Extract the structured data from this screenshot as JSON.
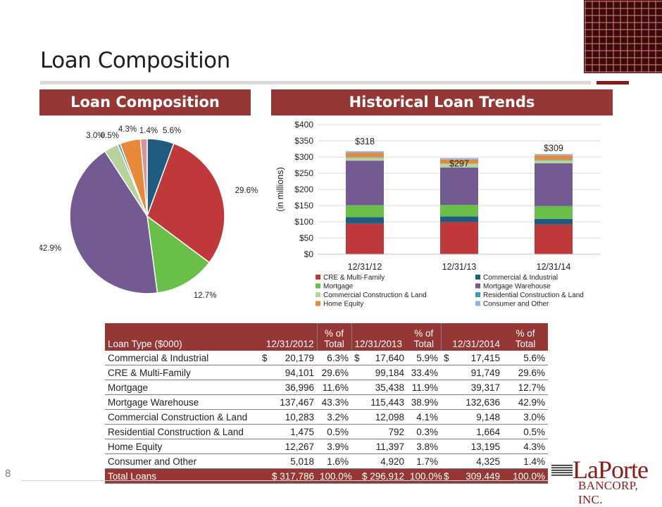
{
  "page": {
    "title": "Loan Composition",
    "page_number": "8"
  },
  "panels": {
    "left_title": "Loan Composition",
    "right_title": "Historical Loan Trends"
  },
  "logo": {
    "name": "LaPorte",
    "subtitle": "BANCORP, INC."
  },
  "colors": {
    "banner": "#953735",
    "commercial_industrial": "#1F5C7F",
    "cre_multi_family": "#C0393A",
    "mortgage": "#6ABF4B",
    "mortgage_warehouse": "#745A93",
    "commercial_construction_land": "#B7D39B",
    "residential_construction_land": "#3A9BB7",
    "home_equity": "#E8883A",
    "consumer_other": "#95B3D7",
    "consumer_other_pie": "#D99594"
  },
  "chart_data": [
    {
      "type": "pie",
      "title": "Loan Composition",
      "slices": [
        {
          "name": "Commercial & Industrial",
          "value": 5.6,
          "label": "5.6%"
        },
        {
          "name": "CRE & Multi-Family",
          "value": 29.6,
          "label": "29.6%"
        },
        {
          "name": "Mortgage",
          "value": 12.7,
          "label": "12.7%"
        },
        {
          "name": "Mortgage Warehouse",
          "value": 42.9,
          "label": "42.9%"
        },
        {
          "name": "Commercial Construction & Land",
          "value": 3.0,
          "label": "3.0%"
        },
        {
          "name": "Residential Construction & Land",
          "value": 0.5,
          "label": "0.5%"
        },
        {
          "name": "Home Equity",
          "value": 4.3,
          "label": "4.3%"
        },
        {
          "name": "Consumer and Other",
          "value": 1.4,
          "label": "1.4%"
        }
      ]
    },
    {
      "type": "bar",
      "stacked": true,
      "title": "Historical Loan Trends",
      "categories": [
        "12/31/12",
        "12/31/13",
        "12/31/14"
      ],
      "ylabel": "(in millions)",
      "ylim": [
        0,
        400
      ],
      "yticks": [
        0,
        50,
        100,
        150,
        200,
        250,
        300,
        350,
        400
      ],
      "ytick_labels": [
        "$0",
        "$50",
        "$100",
        "$150",
        "$200",
        "$250",
        "$300",
        "$350",
        "$400"
      ],
      "totals": [
        "$318",
        "$297",
        "$309"
      ],
      "legend_position": "bottom",
      "series": [
        {
          "name": "CRE & Multi-Family",
          "values": [
            94.1,
            99.2,
            91.7
          ]
        },
        {
          "name": "Commercial & Industrial",
          "values": [
            20.2,
            17.6,
            17.4
          ]
        },
        {
          "name": "Mortgage",
          "values": [
            37.0,
            35.4,
            39.3
          ]
        },
        {
          "name": "Mortgage Warehouse",
          "values": [
            137.5,
            115.4,
            132.6
          ]
        },
        {
          "name": "Commercial Construction & Land",
          "values": [
            10.3,
            12.1,
            9.1
          ]
        },
        {
          "name": "Residential Construction & Land",
          "values": [
            1.5,
            0.8,
            1.7
          ]
        },
        {
          "name": "Home Equity",
          "values": [
            12.3,
            11.4,
            13.2
          ]
        },
        {
          "name": "Consumer and Other",
          "values": [
            5.0,
            4.9,
            4.3
          ]
        }
      ],
      "legend_order": [
        "CRE & Multi-Family",
        "Commercial & Industrial",
        "Mortgage",
        "Mortgage Warehouse",
        "Commercial Construction & Land",
        "Residential Construction & Land",
        "Home Equity",
        "Consumer and Other"
      ]
    }
  ],
  "table": {
    "headers": {
      "loan_type": "Loan Type ($000)",
      "d2012": "12/31/2012",
      "pct_top": "% of",
      "pct_bottom": "Total",
      "d2013": "12/31/2013",
      "d2014": "12/31/2014"
    },
    "rows": [
      {
        "type": "Commercial & Industrial",
        "v2012": "20,179",
        "p2012": "6.3%",
        "v2013": "17,640",
        "p2013": "5.9%",
        "v2014": "17,415",
        "p2014": "5.6%",
        "cur": "$"
      },
      {
        "type": "CRE & Multi-Family",
        "v2012": "94,101",
        "p2012": "29.6%",
        "v2013": "99,184",
        "p2013": "33.4%",
        "v2014": "91,749",
        "p2014": "29.6%",
        "cur": ""
      },
      {
        "type": "Mortgage",
        "v2012": "36,996",
        "p2012": "11.6%",
        "v2013": "35,438",
        "p2013": "11.9%",
        "v2014": "39,317",
        "p2014": "12.7%",
        "cur": ""
      },
      {
        "type": "Mortgage Warehouse",
        "v2012": "137,467",
        "p2012": "43.3%",
        "v2013": "115,443",
        "p2013": "38.9%",
        "v2014": "132,636",
        "p2014": "42.9%",
        "cur": ""
      },
      {
        "type": "Commercial Construction & Land",
        "v2012": "10,283",
        "p2012": "3.2%",
        "v2013": "12,098",
        "p2013": "4.1%",
        "v2014": "9,148",
        "p2014": "3.0%",
        "cur": ""
      },
      {
        "type": "Residential Construction & Land",
        "v2012": "1,475",
        "p2012": "0.5%",
        "v2013": "792",
        "p2013": "0.3%",
        "v2014": "1,664",
        "p2014": "0.5%",
        "cur": ""
      },
      {
        "type": "Home Equity",
        "v2012": "12,267",
        "p2012": "3.9%",
        "v2013": "11,397",
        "p2013": "3.8%",
        "v2014": "13,195",
        "p2014": "4.3%",
        "cur": ""
      },
      {
        "type": "Consumer and Other",
        "v2012": "5,018",
        "p2012": "1.6%",
        "v2013": "4,920",
        "p2013": "1.7%",
        "v2014": "4,325",
        "p2014": "1.4%",
        "cur": ""
      }
    ],
    "total": {
      "type": "Total Loans",
      "v2012": "$ 317,786",
      "p2012": "100.0%",
      "v2013": "$ 296,912",
      "p2013": "100.0%",
      "cur2014": "$",
      "v2014": "309,449",
      "p2014": "100.0%"
    }
  }
}
